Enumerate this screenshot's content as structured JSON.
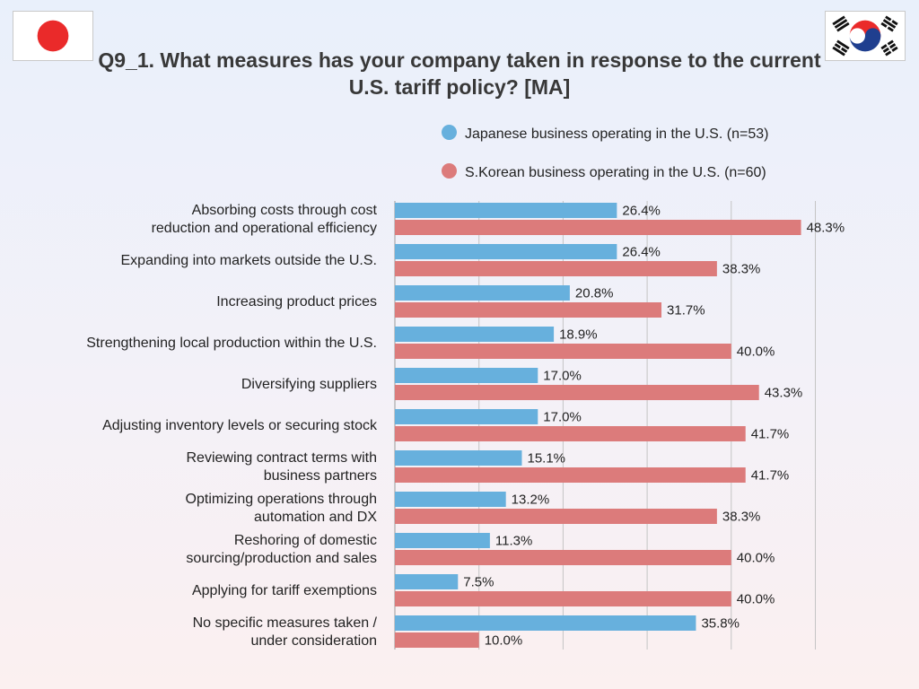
{
  "title": "Q9_1. What measures has your company taken in response to the current U.S. tariff policy?  [MA]",
  "flags": [
    {
      "name": "japan-flag-icon",
      "country": "Japan"
    },
    {
      "name": "south-korea-flag-icon",
      "country": "South Korea"
    }
  ],
  "colors": {
    "japan": "#67b0dd",
    "korea": "#dc7b7b",
    "grid": "#c4c4c4",
    "flag_red": "#ea2a2a",
    "flag_blue": "#1f3f8f"
  },
  "legend": {
    "japan": "Japanese business operating in the U.S. (n=53)",
    "korea": "S.Korean business operating in the U.S. (n=60)"
  },
  "chart_data": {
    "type": "bar",
    "orientation": "horizontal",
    "xlim": [
      0,
      50
    ],
    "grid": true,
    "legend_position": "top-right",
    "value_suffix": "%",
    "categories": [
      [
        "Absorbing costs through cost",
        "reduction and operational efficiency"
      ],
      [
        "Expanding into markets outside the U.S."
      ],
      [
        "Increasing product prices"
      ],
      [
        "Strengthening local production within the U.S."
      ],
      [
        "Diversifying suppliers"
      ],
      [
        "Adjusting inventory levels or securing stock"
      ],
      [
        "Reviewing contract terms with",
        "business partners"
      ],
      [
        "Optimizing operations through",
        "automation and DX"
      ],
      [
        "Reshoring of domestic",
        "sourcing/production and sales"
      ],
      [
        "Applying for tariff exemptions"
      ],
      [
        "No specific measures taken /",
        "under consideration"
      ]
    ],
    "series": [
      {
        "name": "Japanese business operating in the U.S. (n=53)",
        "values": [
          26.4,
          26.4,
          20.8,
          18.9,
          17.0,
          17.0,
          15.1,
          13.2,
          11.3,
          7.5,
          35.8
        ]
      },
      {
        "name": "S.Korean business operating in the U.S. (n=60)",
        "values": [
          48.3,
          38.3,
          31.7,
          40.0,
          43.3,
          41.7,
          41.7,
          38.3,
          40.0,
          40.0,
          10.0
        ]
      }
    ]
  }
}
